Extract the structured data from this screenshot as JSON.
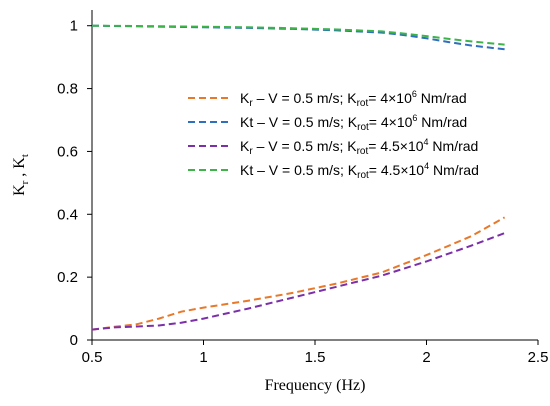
{
  "chart_data": {
    "type": "line",
    "xlabel": "Frequency (Hz)",
    "ylabel": "K_r , K_t",
    "ylabel_parts": {
      "k1": "K",
      "s1": "r",
      "sep": " , ",
      "k2": "K",
      "s2": "t"
    },
    "xlim": [
      0.5,
      2.5
    ],
    "ylim": [
      0,
      1.05
    ],
    "xticks": [
      0.5,
      1,
      1.5,
      2,
      2.5
    ],
    "xtick_labels": [
      "0.5",
      "1",
      "1.5",
      "2",
      "2.5"
    ],
    "yticks": [
      0,
      0.2,
      0.4,
      0.6,
      0.8,
      1
    ],
    "ytick_labels": [
      "0",
      "0.2",
      "0.4",
      "0.6",
      "0.8",
      "1"
    ],
    "grid": false,
    "legend_position": "right-middle",
    "series": [
      {
        "name": "Kr – V = 0.5 m/s; Krot= 4×10^6 Nm/rad",
        "legend": {
          "k": "K",
          "sub": "r",
          "mid": " – V = 0.5 m/s; K",
          "sub2": "rot",
          "val": "= 4×10",
          "sup": "6",
          "unit": " Nm/rad"
        },
        "color": "#E8782A",
        "x": [
          0.5,
          0.6,
          0.7,
          0.8,
          0.9,
          1.0,
          1.2,
          1.4,
          1.6,
          1.8,
          2.0,
          2.2,
          2.35
        ],
        "values": [
          0.033,
          0.042,
          0.05,
          0.068,
          0.09,
          0.103,
          0.125,
          0.15,
          0.18,
          0.215,
          0.27,
          0.33,
          0.39
        ]
      },
      {
        "name": "Kt – V = 0.5 m/s; Krot= 4×10^6 Nm/rad",
        "legend": {
          "k": "Kt",
          "sub": "",
          "mid": " – V = 0.5 m/s; K",
          "sub2": "rot",
          "val": "= 4×10",
          "sup": "6",
          "unit": " Nm/rad"
        },
        "color": "#2E6FBF",
        "x": [
          0.5,
          0.7,
          1.0,
          1.2,
          1.4,
          1.6,
          1.8,
          1.9,
          2.0,
          2.1,
          2.2,
          2.35
        ],
        "values": [
          1.0,
          0.998,
          0.995,
          0.993,
          0.99,
          0.985,
          0.978,
          0.97,
          0.96,
          0.948,
          0.937,
          0.925
        ]
      },
      {
        "name": "Kr – V = 0.5 m/s; Krot= 4.5×10^4 Nm/rad",
        "legend": {
          "k": "K",
          "sub": "r",
          "mid": " – V = 0.5 m/s; K",
          "sub2": "rot",
          "val": "= 4.5×10",
          "sup": "4",
          "unit": " Nm/rad"
        },
        "color": "#7B2FA8",
        "x": [
          0.5,
          0.6,
          0.7,
          0.8,
          0.9,
          1.0,
          1.2,
          1.4,
          1.6,
          1.8,
          2.0,
          2.2,
          2.35
        ],
        "values": [
          0.033,
          0.04,
          0.043,
          0.046,
          0.055,
          0.068,
          0.1,
          0.135,
          0.17,
          0.205,
          0.25,
          0.3,
          0.34
        ]
      },
      {
        "name": "Kt – V = 0.5 m/s; Krot= 4.5×10^4 Nm/rad",
        "legend": {
          "k": "Kt",
          "sub": "",
          "mid": " – V = 0.5 m/s; K",
          "sub2": "rot",
          "val": "= 4.5×10",
          "sup": "4",
          "unit": " Nm/rad"
        },
        "color": "#3DB34A",
        "x": [
          0.5,
          0.7,
          1.0,
          1.2,
          1.4,
          1.6,
          1.8,
          1.9,
          2.0,
          2.1,
          2.2,
          2.35
        ],
        "values": [
          1.0,
          0.999,
          0.997,
          0.995,
          0.992,
          0.988,
          0.982,
          0.975,
          0.967,
          0.958,
          0.95,
          0.94
        ]
      }
    ]
  }
}
